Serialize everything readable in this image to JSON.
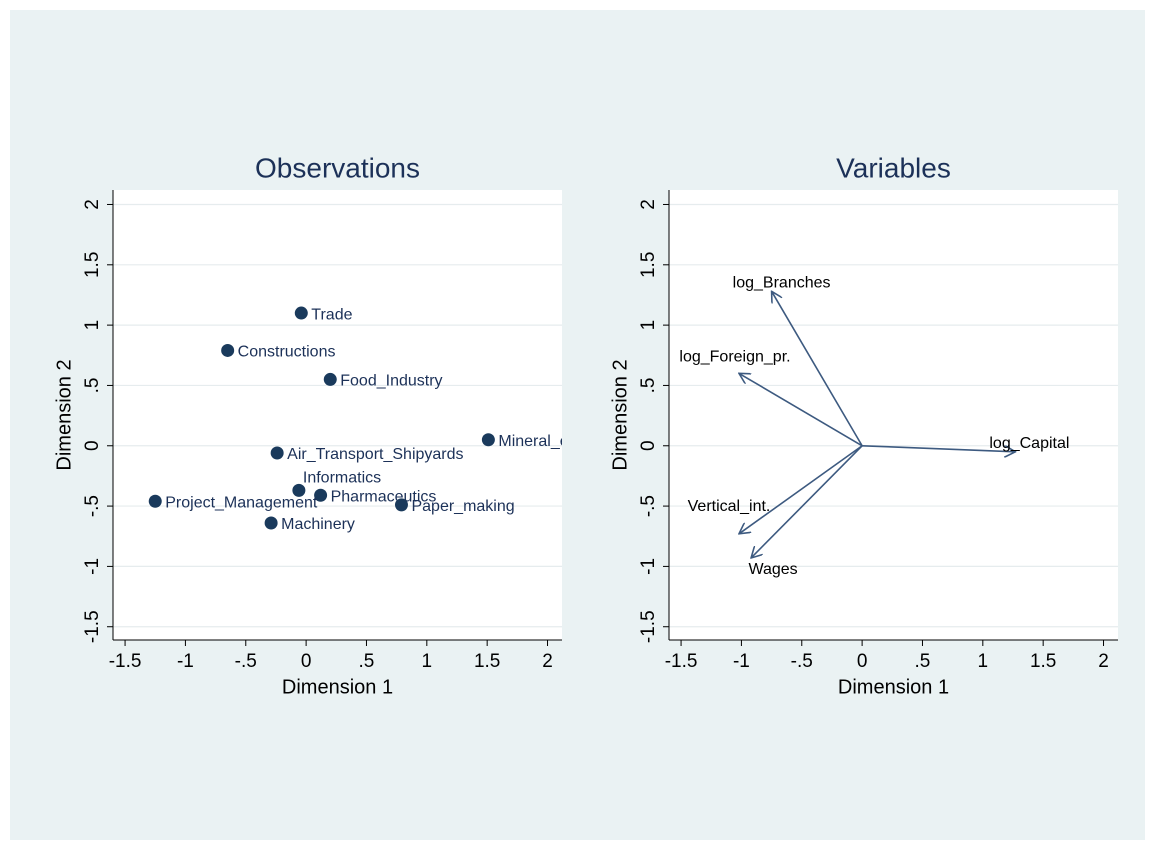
{
  "chart_data": [
    {
      "type": "scatter",
      "title": "Observations",
      "x_label": "Dimension 1",
      "y_label": "Dimension 2",
      "color": "#1a3a5c",
      "label_color": "#1c3158",
      "labels": [
        "Trade",
        "Constructions",
        "Food_Industry",
        "Mineral_ex",
        "Air_Transport_Shipyards",
        "Informatics",
        "Pharmaceutics",
        "Paper_making",
        "Project_Management",
        "Machinery"
      ],
      "x": [
        -0.04,
        -0.65,
        0.2,
        1.51,
        -0.24,
        -0.06,
        0.12,
        0.79,
        -1.25,
        -0.29
      ],
      "y": [
        1.1,
        0.79,
        0.55,
        0.05,
        -0.06,
        -0.37,
        -0.41,
        -0.49,
        -0.46,
        -0.64
      ],
      "xlim": [
        -1.6,
        2.12
      ],
      "ylim": [
        -1.61,
        2.12
      ],
      "xticks": [
        {
          "value": -1.5,
          "label": "-1.5"
        },
        -1,
        {
          "value": -0.5,
          "label": "-.5"
        },
        0,
        {
          "value": 0.5,
          "label": ".5"
        },
        1,
        1.5,
        2
      ],
      "yticks": [
        {
          "value": -1.5,
          "label": "-1.5"
        },
        -1,
        {
          "value": -0.5,
          "label": "-.5"
        },
        0,
        {
          "value": 0.5,
          "label": ".5"
        },
        1,
        1.5,
        2
      ],
      "grid": true
    },
    {
      "type": "vector",
      "title": "Variables",
      "x_label": "Dimension 1",
      "y_label": "Dimension 2",
      "color": "#3d5a80",
      "label_color": "#000000",
      "labels": [
        "log_Branches",
        "log_Foreign_pr.",
        "log_Capital",
        "Vertical_int.",
        "Wages"
      ],
      "x": [
        -0.75,
        -1.02,
        1.27,
        -1.02,
        -0.92
      ],
      "y": [
        1.28,
        0.6,
        -0.05,
        -0.73,
        -0.93
      ],
      "xlim": [
        -1.6,
        2.12
      ],
      "ylim": [
        -1.61,
        2.12
      ],
      "xticks": [
        {
          "value": -1.5,
          "label": "-1.5"
        },
        -1,
        {
          "value": -0.5,
          "label": "-.5"
        },
        0,
        {
          "value": 0.5,
          "label": ".5"
        },
        1,
        1.5,
        2
      ],
      "yticks": [
        {
          "value": -1.5,
          "label": "-1.5"
        },
        -1,
        {
          "value": -0.5,
          "label": "-.5"
        },
        0,
        {
          "value": 0.5,
          "label": ".5"
        },
        1,
        1.5,
        2
      ],
      "grid": true
    }
  ]
}
